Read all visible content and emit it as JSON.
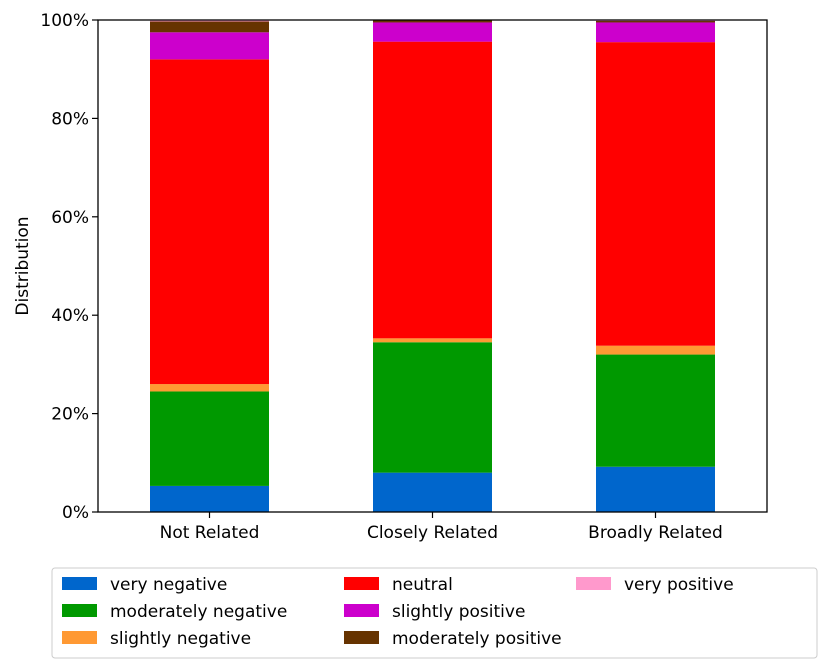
{
  "chart_data": {
    "type": "bar",
    "stacked": true,
    "categories": [
      "Not Related",
      "Closely Related",
      "Broadly Related"
    ],
    "xlabel": "",
    "ylabel": "Distribution",
    "ylim": [
      0,
      100
    ],
    "yticks": [
      0,
      20,
      40,
      60,
      80,
      100
    ],
    "ytick_labels": [
      "0%",
      "20%",
      "40%",
      "60%",
      "80%",
      "100%"
    ],
    "y_unit": "percent",
    "grid": false,
    "legend_position": "bottom",
    "series": [
      {
        "name": "very negative",
        "color": "#0066cc",
        "values": [
          5.3,
          8.0,
          9.2
        ]
      },
      {
        "name": "moderately negative",
        "color": "#009900",
        "values": [
          19.2,
          26.5,
          22.8
        ]
      },
      {
        "name": "slightly negative",
        "color": "#ff9933",
        "values": [
          1.5,
          0.8,
          1.8
        ]
      },
      {
        "name": "neutral",
        "color": "#ff0000",
        "values": [
          66.0,
          60.3,
          61.7
        ]
      },
      {
        "name": "slightly positive",
        "color": "#cc00cc",
        "values": [
          5.5,
          3.9,
          4.0
        ]
      },
      {
        "name": "moderately positive",
        "color": "#663300",
        "values": [
          2.2,
          0.5,
          0.3
        ]
      },
      {
        "name": "very positive",
        "color": "#ff99cc",
        "values": [
          0.3,
          0.0,
          0.2
        ]
      }
    ]
  }
}
